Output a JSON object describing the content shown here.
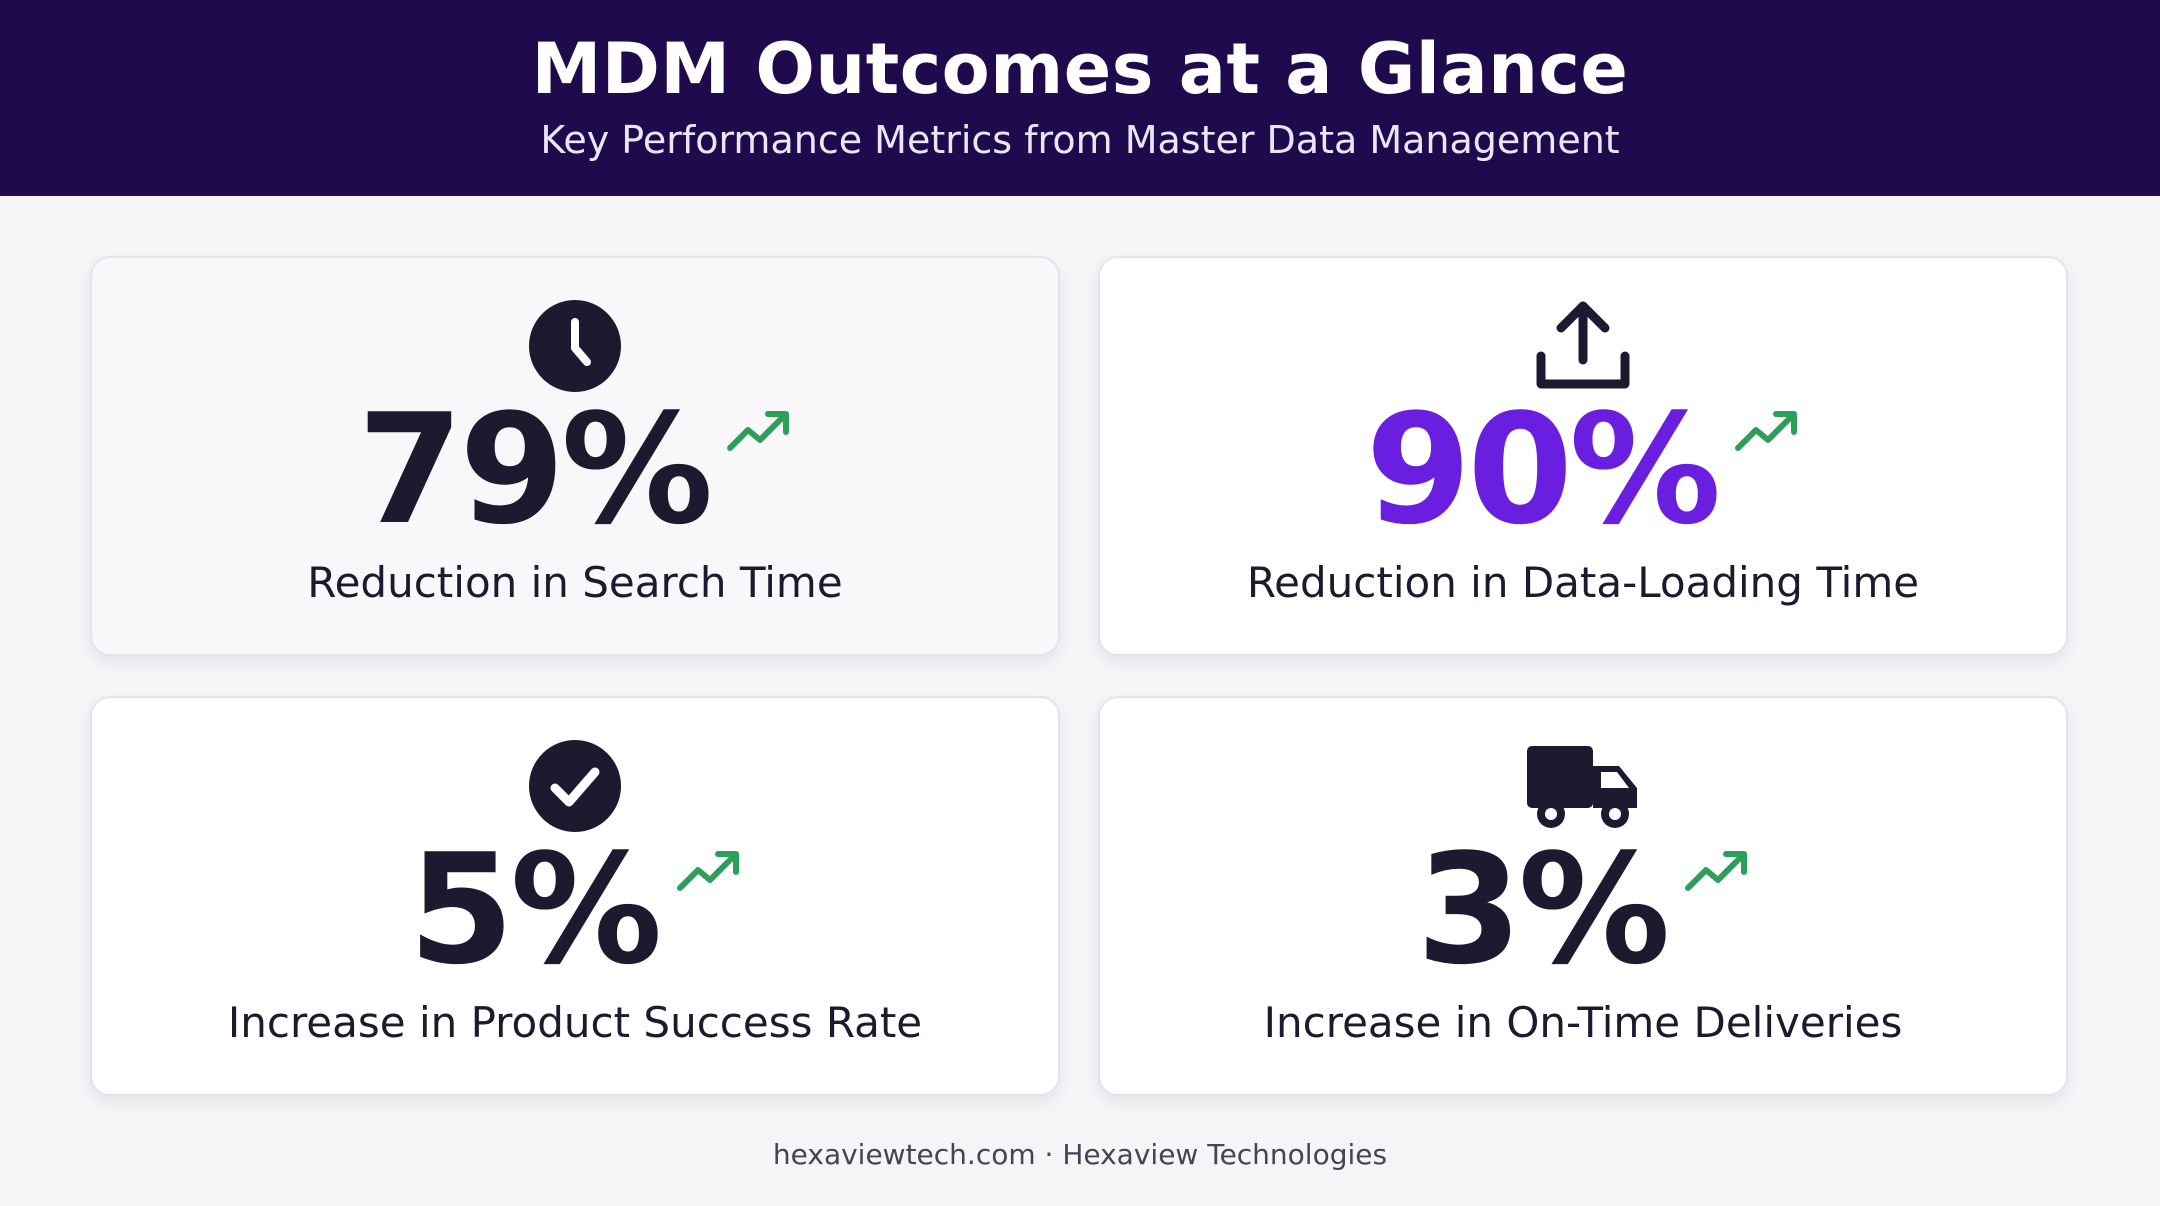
{
  "header": {
    "title": "MDM Outcomes at a Glance",
    "subtitle": "Key Performance Metrics from Master Data Management"
  },
  "metrics": [
    {
      "icon": "clock-icon",
      "value": "79%",
      "label": "Reduction in Search Time",
      "value_color": "#1b1a2e"
    },
    {
      "icon": "upload-icon",
      "value": "90%",
      "label": "Reduction in Data-Loading Time",
      "value_color": "#6a1fe0"
    },
    {
      "icon": "check-circle-icon",
      "value": "5%",
      "label": "Increase in Product Success Rate",
      "value_color": "#1b1a2e"
    },
    {
      "icon": "truck-icon",
      "value": "3%",
      "label": "Increase in On-Time Deliveries",
      "value_color": "#1b1a2e"
    }
  ],
  "trend_icon": "trending-up-icon",
  "colors": {
    "header_bg": "#1f0a4d",
    "accent": "#6a1fe0",
    "trend": "#2e9e5b",
    "text": "#1b1a2e"
  },
  "footer": {
    "text": "hexaviewtech.com · Hexaview Technologies"
  }
}
